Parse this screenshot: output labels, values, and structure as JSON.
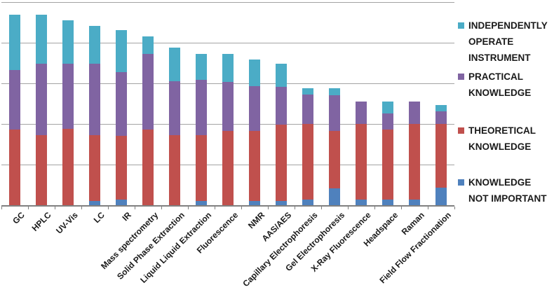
{
  "chart_data": {
    "type": "bar",
    "stacked": true,
    "title": "",
    "xlabel": "",
    "ylabel": "",
    "ylim": [
      0,
      100
    ],
    "gridline_step": 20,
    "grid_on": true,
    "gridline_color": "#A3A3A3",
    "axis_color": "#808080",
    "label_color": "#1A1A1A",
    "legend_position": "right",
    "categories": [
      "GC",
      "HPLC",
      "UV-Vis",
      "LC",
      "IR",
      "Mass spectrometry",
      "Solid Phase Extraction",
      "Liquid Liquid Extraction",
      "Fluorescence",
      "NMR",
      "AAS/AES",
      "Capillary Electrophoresis",
      "Gel Electrophoresis",
      "X-Ray Fluorescence",
      "Headspace",
      "Raman",
      "Field Flow Fractionation"
    ],
    "series": [
      {
        "name": "KNOWLEDGE NOT IMPORTANT",
        "color": "#4F81BD",
        "values": [
          0,
          0,
          0,
          2.5,
          3,
          0,
          0,
          2.5,
          0,
          2.5,
          2.5,
          3,
          8.5,
          3,
          3,
          3,
          9
        ]
      },
      {
        "name": "THEORETICAL KNOWLEDGE",
        "color": "#C0504D",
        "values": [
          37.5,
          35,
          38,
          32.5,
          31.5,
          37.5,
          35,
          32.5,
          37,
          34.5,
          37.5,
          37.5,
          28.5,
          37.5,
          34.5,
          37.5,
          31.5
        ]
      },
      {
        "name": "PRACTICAL KNOWLEDGE",
        "color": "#8064A2",
        "values": [
          29.5,
          35,
          32,
          35,
          31.5,
          37.5,
          26.5,
          27,
          24,
          22,
          18.5,
          14.5,
          17.5,
          11,
          8,
          11,
          6
        ]
      },
      {
        "name": "INDEPENDENTLY OPERATE INSTRUMENT",
        "color": "#4BACC6",
        "values": [
          27,
          24,
          21.5,
          18.5,
          20.5,
          8.5,
          16.5,
          13,
          14,
          13,
          11.5,
          3,
          3.5,
          0,
          6,
          0,
          3
        ]
      }
    ],
    "legend": {
      "items": [
        {
          "color": "#4BACC6",
          "lines": [
            "INDEPENDENTLY",
            "OPERATE",
            "INSTRUMENT"
          ]
        },
        {
          "color": "#8064A2",
          "lines": [
            "PRACTICAL",
            "KNOWLEDGE"
          ]
        },
        {
          "color": "#C0504D",
          "lines": [
            "THEORETICAL",
            "KNOWLEDGE"
          ]
        },
        {
          "color": "#4F81BD",
          "lines": [
            "KNOWLEDGE",
            "NOT IMPORTANT"
          ]
        }
      ]
    }
  }
}
